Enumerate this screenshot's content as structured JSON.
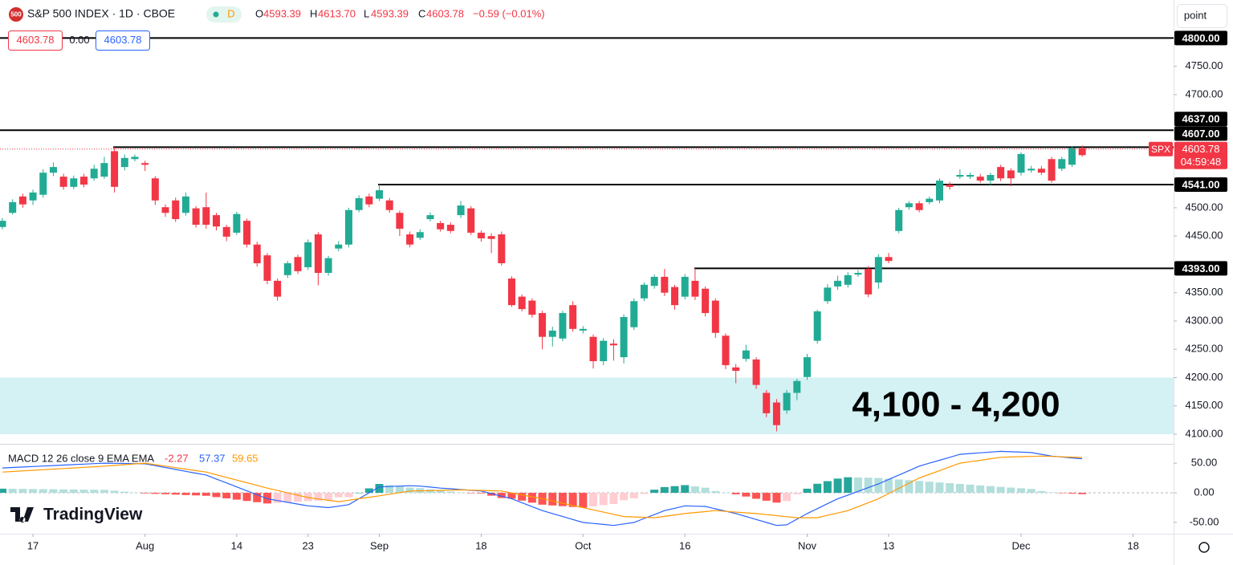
{
  "header": {
    "symbol_badge": "500",
    "title": "S&P 500 INDEX · 1D · CBOE",
    "interval_badge": "D",
    "ohlc": [
      {
        "label": "O",
        "value": "4593.39"
      },
      {
        "label": "H",
        "value": "4613.70"
      },
      {
        "label": "L",
        "value": "4593.39"
      },
      {
        "label": "C",
        "value": "4603.78"
      }
    ],
    "change": "−0.59 (−0.01%)",
    "boxes": [
      "4603.78",
      "0.00",
      "4603.78"
    ]
  },
  "scale_button": "point",
  "logo": "TradingView",
  "chart_data": [
    {
      "type": "candlestick",
      "up_color": "#22ab94",
      "down_color": "#f23645",
      "open": [
        4466,
        4491,
        4520,
        4513,
        4523,
        4562,
        4555,
        4537,
        4555,
        4552,
        4555,
        4600,
        4572,
        4586,
        4579,
        4552,
        4501,
        4513,
        4491,
        4499,
        4501,
        4487,
        4466,
        4456,
        4477,
        4435,
        4416,
        4371,
        4381,
        4413,
        4395,
        4453,
        4385,
        4428,
        4435,
        4496,
        4520,
        4516,
        4513,
        4491,
        4453,
        4447,
        4480,
        4473,
        4470,
        4487,
        4499,
        4456,
        4450,
        4453,
        4375,
        4343,
        4336,
        4314,
        4272,
        4269,
        4328,
        4283,
        4272,
        4229,
        4260,
        4236,
        4289,
        4340,
        4362,
        4378,
        4360,
        4343,
        4371,
        4357,
        4336,
        4274,
        4218,
        4233,
        4232,
        4173,
        4156,
        4142,
        4173,
        4201,
        4265,
        4335,
        4361,
        4364,
        4382,
        4392,
        4368,
        4413,
        4459,
        4501,
        4508,
        4510,
        4513,
        4541,
        4555,
        4555,
        4555,
        4548,
        4572,
        4566,
        4562,
        4566,
        4569,
        4586,
        4569,
        4576,
        4605
      ],
      "high": [
        4482,
        4515,
        4525,
        4532,
        4568,
        4580,
        4560,
        4557,
        4560,
        4576,
        4590,
        4607,
        4594,
        4594,
        4583,
        4556,
        4506,
        4518,
        4527,
        4503,
        4527,
        4491,
        4470,
        4493,
        4481,
        4440,
        4420,
        4375,
        4406,
        4417,
        4444,
        4457,
        4415,
        4441,
        4500,
        4522,
        4525,
        4541,
        4517,
        4495,
        4458,
        4462,
        4492,
        4477,
        4474,
        4512,
        4503,
        4460,
        4455,
        4458,
        4379,
        4347,
        4340,
        4318,
        4290,
        4318,
        4335,
        4291,
        4276,
        4270,
        4268,
        4312,
        4340,
        4368,
        4382,
        4392,
        4364,
        4383,
        4393,
        4361,
        4340,
        4278,
        4224,
        4258,
        4236,
        4178,
        4162,
        4178,
        4198,
        4242,
        4320,
        4365,
        4380,
        4386,
        4390,
        4397,
        4418,
        4420,
        4500,
        4512,
        4512,
        4520,
        4552,
        4546,
        4568,
        4562,
        4560,
        4562,
        4576,
        4570,
        4598,
        4574,
        4574,
        4590,
        4590,
        4609,
        4610
      ],
      "low": [
        4462,
        4488,
        4500,
        4505,
        4518,
        4556,
        4532,
        4533,
        4536,
        4548,
        4551,
        4527,
        4566,
        4582,
        4565,
        4505,
        4484,
        4475,
        4486,
        4465,
        4463,
        4460,
        4441,
        4452,
        4430,
        4396,
        4365,
        4336,
        4376,
        4383,
        4390,
        4363,
        4380,
        4423,
        4430,
        4492,
        4501,
        4512,
        4491,
        4450,
        4430,
        4443,
        4476,
        4458,
        4455,
        4482,
        4452,
        4440,
        4420,
        4398,
        4325,
        4317,
        4306,
        4250,
        4255,
        4264,
        4281,
        4278,
        4216,
        4222,
        4230,
        4225,
        4284,
        4335,
        4357,
        4344,
        4320,
        4338,
        4337,
        4308,
        4270,
        4215,
        4190,
        4228,
        4180,
        4130,
        4105,
        4136,
        4160,
        4196,
        4260,
        4330,
        4355,
        4359,
        4378,
        4342,
        4357,
        4402,
        4455,
        4497,
        4492,
        4506,
        4508,
        4532,
        4551,
        4551,
        4544,
        4540,
        4547,
        4538,
        4557,
        4562,
        4558,
        4544,
        4565,
        4572,
        4590
      ],
      "close": [
        4477,
        4510,
        4506,
        4527,
        4562,
        4572,
        4537,
        4552,
        4541,
        4569,
        4579,
        4537,
        4588,
        4590,
        4576,
        4513,
        4491,
        4480,
        4520,
        4470,
        4470,
        4467,
        4449,
        4489,
        4435,
        4402,
        4371,
        4343,
        4402,
        4388,
        4439,
        4385,
        4411,
        4435,
        4496,
        4517,
        4506,
        4531,
        4496,
        4463,
        4435,
        4457,
        4487,
        4462,
        4459,
        4504,
        4456,
        4446,
        4445,
        4402,
        4328,
        4321,
        4311,
        4272,
        4283,
        4314,
        4286,
        4286,
        4229,
        4265,
        4257,
        4307,
        4335,
        4364,
        4378,
        4350,
        4328,
        4378,
        4343,
        4314,
        4279,
        4222,
        4212,
        4248,
        4187,
        4137,
        4116,
        4173,
        4194,
        4236,
        4317,
        4359,
        4371,
        4381,
        4385,
        4347,
        4413,
        4406,
        4496,
        4508,
        4496,
        4516,
        4548,
        4537,
        4558,
        4558,
        4548,
        4558,
        4552,
        4552,
        4595,
        4569,
        4562,
        4548,
        4586,
        4606,
        4593
      ],
      "ylim": [
        4083,
        4860
      ],
      "yticks": [
        {
          "value": 4750,
          "label": "4750.00"
        },
        {
          "value": 4700,
          "label": "4700.00"
        },
        {
          "value": 4500,
          "label": "4500.00"
        },
        {
          "value": 4450,
          "label": "4450.00"
        },
        {
          "value": 4350,
          "label": "4350.00"
        },
        {
          "value": 4300,
          "label": "4300.00"
        },
        {
          "value": 4250,
          "label": "4250.00"
        },
        {
          "value": 4200,
          "label": "4200.00"
        },
        {
          "value": 4150,
          "label": "4150.00"
        },
        {
          "value": 4100,
          "label": "4100.00"
        }
      ],
      "xticks": [
        {
          "value": 3,
          "label": "17"
        },
        {
          "value": 14,
          "label": "Aug"
        },
        {
          "value": 23,
          "label": "14"
        },
        {
          "value": 30,
          "label": "23"
        },
        {
          "value": 37,
          "label": "Sep"
        },
        {
          "value": 47,
          "label": "18"
        },
        {
          "value": 57,
          "label": "Oct"
        },
        {
          "value": 67,
          "label": "16"
        },
        {
          "value": 79,
          "label": "Nov"
        },
        {
          "value": 87,
          "label": "13"
        },
        {
          "value": 100,
          "label": "Dec"
        },
        {
          "value": 111,
          "label": "18"
        }
      ],
      "levels": [
        {
          "value": 4800,
          "label": "4800.00"
        },
        {
          "value": 4637,
          "label": "4637.00"
        },
        {
          "value": 4607,
          "label": "4607.00"
        },
        {
          "value": 4541,
          "label": "4541.00"
        },
        {
          "value": 4393,
          "label": "4393.00"
        }
      ],
      "zone": {
        "from": 4100,
        "to": 4200,
        "label": "4,100 - 4,200",
        "color": "#d4f1f4"
      },
      "last_price": 4603.78,
      "symbol": "SPX",
      "countdown": "04:59:48"
    },
    {
      "type": "macd",
      "legend": "MACD 12 26 close 9 EMA EMA",
      "histogram": {
        "colors": [
          "#26a69a",
          "#b2dfdb",
          "#ff5252",
          "#ffcdd2"
        ],
        "values": [
          7,
          6.8,
          6.6,
          6.4,
          6.2,
          6,
          5.8,
          5.6,
          5.4,
          5.2,
          5,
          3.6,
          2,
          0.6,
          -1,
          -1.7,
          -2.3,
          -3,
          -3.7,
          -4.3,
          -5,
          -7.2,
          -9.3,
          -11.5,
          -13.7,
          -15.8,
          -18,
          -17,
          -16,
          -15,
          -14,
          -13.2,
          -12.3,
          -7.5,
          -7.5,
          0,
          7.5,
          15,
          13,
          11,
          9,
          7.9,
          5.9,
          3.8,
          2.2,
          0.5,
          -0.2,
          -1,
          -4.8,
          -8.7,
          -9.8,
          -13.2,
          -16.6,
          -20,
          -21.3,
          -22.5,
          -23.8,
          -25,
          -22.9,
          -20.8,
          -18.8,
          -12.5,
          -9.3,
          -2,
          5.3,
          9.7,
          11.3,
          13,
          10.8,
          8.7,
          3,
          0.3,
          -2.5,
          -6.3,
          -10,
          -13.3,
          -16.5,
          -13.8,
          -2.5,
          7,
          15.3,
          19.7,
          24,
          26.3,
          25.8,
          25.5,
          25,
          23.8,
          22.5,
          21.3,
          20,
          18.8,
          17.5,
          16.3,
          15,
          13.8,
          12.5,
          11.3,
          10,
          8.8,
          7.7,
          6.5,
          3,
          0.6,
          -0.3,
          -1.3,
          -2.27
        ]
      },
      "macd": {
        "color": "#2962ff",
        "values": [
          42,
          42.8,
          43.6,
          44.4,
          45.2,
          46,
          46.8,
          47.6,
          48.4,
          49.2,
          50,
          49.8,
          49.5,
          49.3,
          49,
          45.8,
          42.7,
          39.5,
          36.3,
          33.2,
          30,
          23.3,
          16.7,
          10,
          3.3,
          -3.3,
          -10,
          -13,
          -16,
          -19,
          -22,
          -23.5,
          -25,
          -22.5,
          -20,
          -10,
          0,
          10,
          10.7,
          11.3,
          12,
          11.3,
          9.7,
          8,
          6.8,
          5.5,
          4.3,
          3,
          -1.3,
          -5.7,
          -10,
          -16.7,
          -23.3,
          -30,
          -35,
          -40,
          -45,
          -50,
          -51.7,
          -53.3,
          -55,
          -52.5,
          -50,
          -43.3,
          -36.7,
          -30,
          -26,
          -22,
          -22.5,
          -23,
          -27,
          -31,
          -35,
          -40,
          -45,
          -50,
          -55,
          -54,
          -44.5,
          -35,
          -26.7,
          -18.3,
          -10,
          -3.8,
          2.5,
          8.8,
          15,
          22.5,
          30,
          37.5,
          45,
          50,
          55,
          60,
          65,
          66.3,
          67.5,
          68.8,
          70,
          69.3,
          68.7,
          68,
          65,
          62,
          60.5,
          58.9,
          57.37
        ]
      },
      "signal": {
        "color": "#ff9800",
        "values": [
          35,
          36,
          37,
          38,
          39,
          40,
          41,
          42,
          43,
          44,
          45,
          46.3,
          47.5,
          48.8,
          50,
          47.5,
          45,
          42.5,
          40,
          37.5,
          35,
          30.5,
          26,
          21.5,
          17,
          12.5,
          8,
          4,
          0,
          -4,
          -8,
          -10.3,
          -12.7,
          -15,
          -12.5,
          -10,
          -7.5,
          -5,
          -2.3,
          0.3,
          3,
          3.4,
          3.8,
          4.2,
          4.6,
          5,
          4.5,
          4,
          3.5,
          3,
          -0.3,
          -3.5,
          -6.8,
          -10,
          -13.8,
          -17.5,
          -21.3,
          -25,
          -28.8,
          -32.5,
          -36.3,
          -40,
          -40.7,
          -41.3,
          -42,
          -39.7,
          -37.3,
          -35,
          -33.3,
          -31.7,
          -30,
          -31.3,
          -32.5,
          -33.8,
          -35,
          -36.8,
          -38.5,
          -40.3,
          -42,
          -42,
          -42,
          -38,
          -34,
          -30,
          -23.3,
          -16.7,
          -10,
          -1.3,
          7.5,
          16.3,
          25,
          31.3,
          37.5,
          43.8,
          50,
          52.5,
          55,
          57.5,
          60,
          60.5,
          61,
          61.5,
          62,
          61.4,
          60.8,
          60.2,
          59.65
        ]
      },
      "ylim": [
        -69,
        80
      ],
      "yticks": [
        {
          "value": 50,
          "label": "50.00"
        },
        {
          "value": 0,
          "label": "0.00"
        },
        {
          "value": -50,
          "label": "-50.00"
        }
      ]
    }
  ]
}
